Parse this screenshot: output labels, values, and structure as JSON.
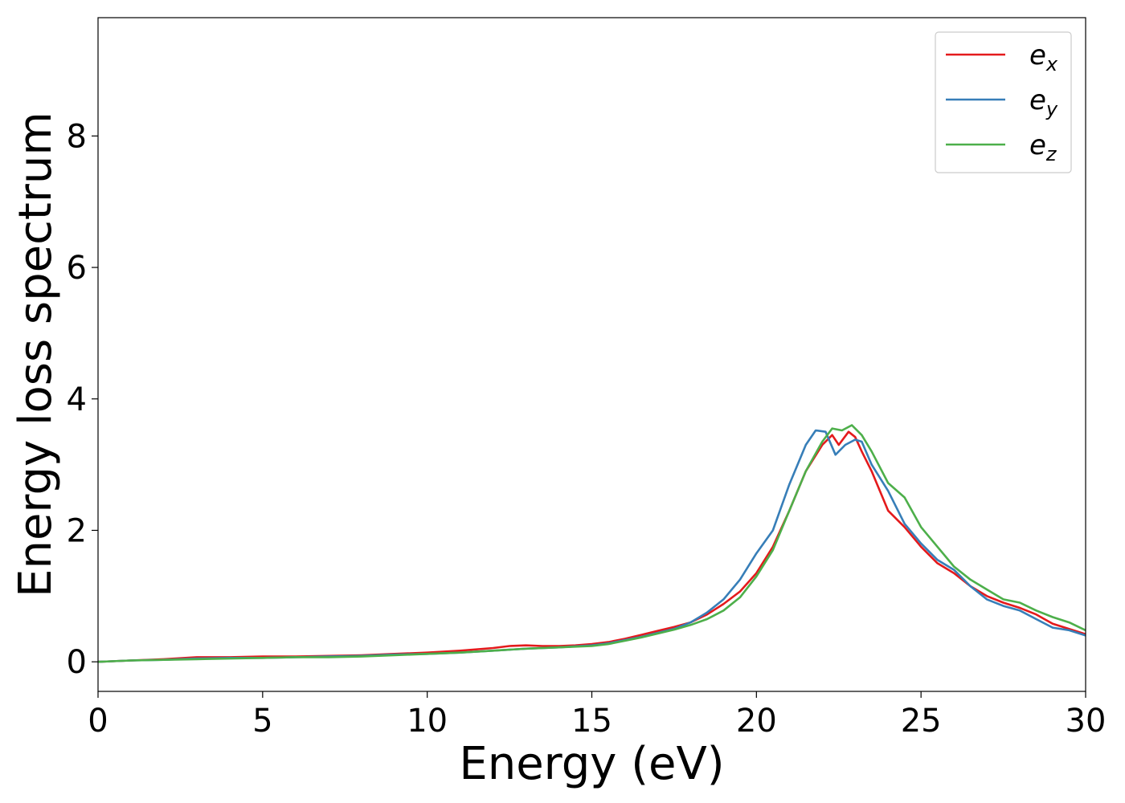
{
  "chart_data": {
    "type": "line",
    "title": "",
    "xlabel": "Energy (eV)",
    "ylabel": "Energy loss spectrum",
    "xlim": [
      0,
      30
    ],
    "ylim": [
      -0.45,
      9.8
    ],
    "xticks": [
      0,
      5,
      10,
      15,
      20,
      25,
      30
    ],
    "yticks": [
      0,
      2,
      4,
      6,
      8
    ],
    "grid": false,
    "legend_position": "top-right",
    "series": [
      {
        "name": "e_x",
        "base": "e",
        "sub": "x",
        "color": "#e41a1c",
        "points": [
          [
            0,
            0
          ],
          [
            1,
            0.02
          ],
          [
            2,
            0.04
          ],
          [
            3,
            0.07
          ],
          [
            4,
            0.07
          ],
          [
            5,
            0.08
          ],
          [
            6,
            0.08
          ],
          [
            7,
            0.09
          ],
          [
            8,
            0.1
          ],
          [
            9,
            0.12
          ],
          [
            10,
            0.14
          ],
          [
            11,
            0.17
          ],
          [
            12,
            0.21
          ],
          [
            12.5,
            0.24
          ],
          [
            13,
            0.25
          ],
          [
            13.5,
            0.24
          ],
          [
            14,
            0.24
          ],
          [
            14.5,
            0.25
          ],
          [
            15,
            0.27
          ],
          [
            15.5,
            0.3
          ],
          [
            16,
            0.35
          ],
          [
            16.5,
            0.41
          ],
          [
            17,
            0.47
          ],
          [
            17.5,
            0.53
          ],
          [
            18,
            0.6
          ],
          [
            18.5,
            0.72
          ],
          [
            19,
            0.88
          ],
          [
            19.5,
            1.07
          ],
          [
            20,
            1.35
          ],
          [
            20.5,
            1.75
          ],
          [
            21,
            2.3
          ],
          [
            21.5,
            2.9
          ],
          [
            22,
            3.3
          ],
          [
            22.3,
            3.45
          ],
          [
            22.5,
            3.3
          ],
          [
            22.8,
            3.5
          ],
          [
            23,
            3.42
          ],
          [
            23.2,
            3.2
          ],
          [
            23.5,
            2.9
          ],
          [
            24,
            2.3
          ],
          [
            24.5,
            2.05
          ],
          [
            25,
            1.75
          ],
          [
            25.5,
            1.5
          ],
          [
            26,
            1.35
          ],
          [
            26.5,
            1.15
          ],
          [
            27,
            1.0
          ],
          [
            27.5,
            0.9
          ],
          [
            28,
            0.82
          ],
          [
            28.5,
            0.72
          ],
          [
            29,
            0.58
          ],
          [
            29.5,
            0.5
          ],
          [
            30,
            0.42
          ]
        ]
      },
      {
        "name": "e_y",
        "base": "e",
        "sub": "y",
        "color": "#377eb8",
        "points": [
          [
            0,
            0
          ],
          [
            1,
            0.02
          ],
          [
            2,
            0.03
          ],
          [
            3,
            0.05
          ],
          [
            4,
            0.06
          ],
          [
            5,
            0.06
          ],
          [
            6,
            0.07
          ],
          [
            7,
            0.08
          ],
          [
            8,
            0.09
          ],
          [
            9,
            0.11
          ],
          [
            10,
            0.12
          ],
          [
            11,
            0.14
          ],
          [
            12,
            0.17
          ],
          [
            13,
            0.2
          ],
          [
            14,
            0.22
          ],
          [
            15,
            0.25
          ],
          [
            15.5,
            0.28
          ],
          [
            16,
            0.33
          ],
          [
            16.5,
            0.38
          ],
          [
            17,
            0.44
          ],
          [
            17.5,
            0.5
          ],
          [
            18,
            0.6
          ],
          [
            18.5,
            0.75
          ],
          [
            19,
            0.95
          ],
          [
            19.5,
            1.25
          ],
          [
            20,
            1.65
          ],
          [
            20.5,
            2.0
          ],
          [
            21,
            2.7
          ],
          [
            21.5,
            3.3
          ],
          [
            21.8,
            3.52
          ],
          [
            22.1,
            3.5
          ],
          [
            22.4,
            3.15
          ],
          [
            22.7,
            3.3
          ],
          [
            23,
            3.38
          ],
          [
            23.2,
            3.35
          ],
          [
            23.5,
            3.0
          ],
          [
            24,
            2.6
          ],
          [
            24.5,
            2.1
          ],
          [
            25,
            1.8
          ],
          [
            25.5,
            1.55
          ],
          [
            26,
            1.4
          ],
          [
            26.5,
            1.15
          ],
          [
            27,
            0.95
          ],
          [
            27.5,
            0.85
          ],
          [
            28,
            0.78
          ],
          [
            28.5,
            0.65
          ],
          [
            29,
            0.52
          ],
          [
            29.5,
            0.48
          ],
          [
            30,
            0.4
          ]
        ]
      },
      {
        "name": "e_z",
        "base": "e",
        "sub": "z",
        "color": "#4daf4a",
        "points": [
          [
            0,
            0
          ],
          [
            1,
            0.02
          ],
          [
            2,
            0.03
          ],
          [
            3,
            0.04
          ],
          [
            4,
            0.05
          ],
          [
            5,
            0.06
          ],
          [
            6,
            0.07
          ],
          [
            7,
            0.07
          ],
          [
            8,
            0.08
          ],
          [
            9,
            0.1
          ],
          [
            10,
            0.12
          ],
          [
            11,
            0.14
          ],
          [
            12,
            0.17
          ],
          [
            13,
            0.2
          ],
          [
            14,
            0.22
          ],
          [
            15,
            0.24
          ],
          [
            15.5,
            0.27
          ],
          [
            16,
            0.32
          ],
          [
            16.5,
            0.37
          ],
          [
            17,
            0.43
          ],
          [
            17.5,
            0.49
          ],
          [
            18,
            0.56
          ],
          [
            18.5,
            0.65
          ],
          [
            19,
            0.78
          ],
          [
            19.5,
            0.98
          ],
          [
            20,
            1.3
          ],
          [
            20.5,
            1.7
          ],
          [
            21,
            2.3
          ],
          [
            21.5,
            2.9
          ],
          [
            22,
            3.35
          ],
          [
            22.3,
            3.55
          ],
          [
            22.6,
            3.52
          ],
          [
            22.9,
            3.6
          ],
          [
            23.2,
            3.45
          ],
          [
            23.5,
            3.2
          ],
          [
            24,
            2.72
          ],
          [
            24.5,
            2.5
          ],
          [
            25,
            2.05
          ],
          [
            25.5,
            1.75
          ],
          [
            26,
            1.45
          ],
          [
            26.5,
            1.25
          ],
          [
            27,
            1.1
          ],
          [
            27.5,
            0.95
          ],
          [
            28,
            0.9
          ],
          [
            28.5,
            0.78
          ],
          [
            29,
            0.68
          ],
          [
            29.5,
            0.6
          ],
          [
            30,
            0.48
          ]
        ]
      }
    ]
  }
}
